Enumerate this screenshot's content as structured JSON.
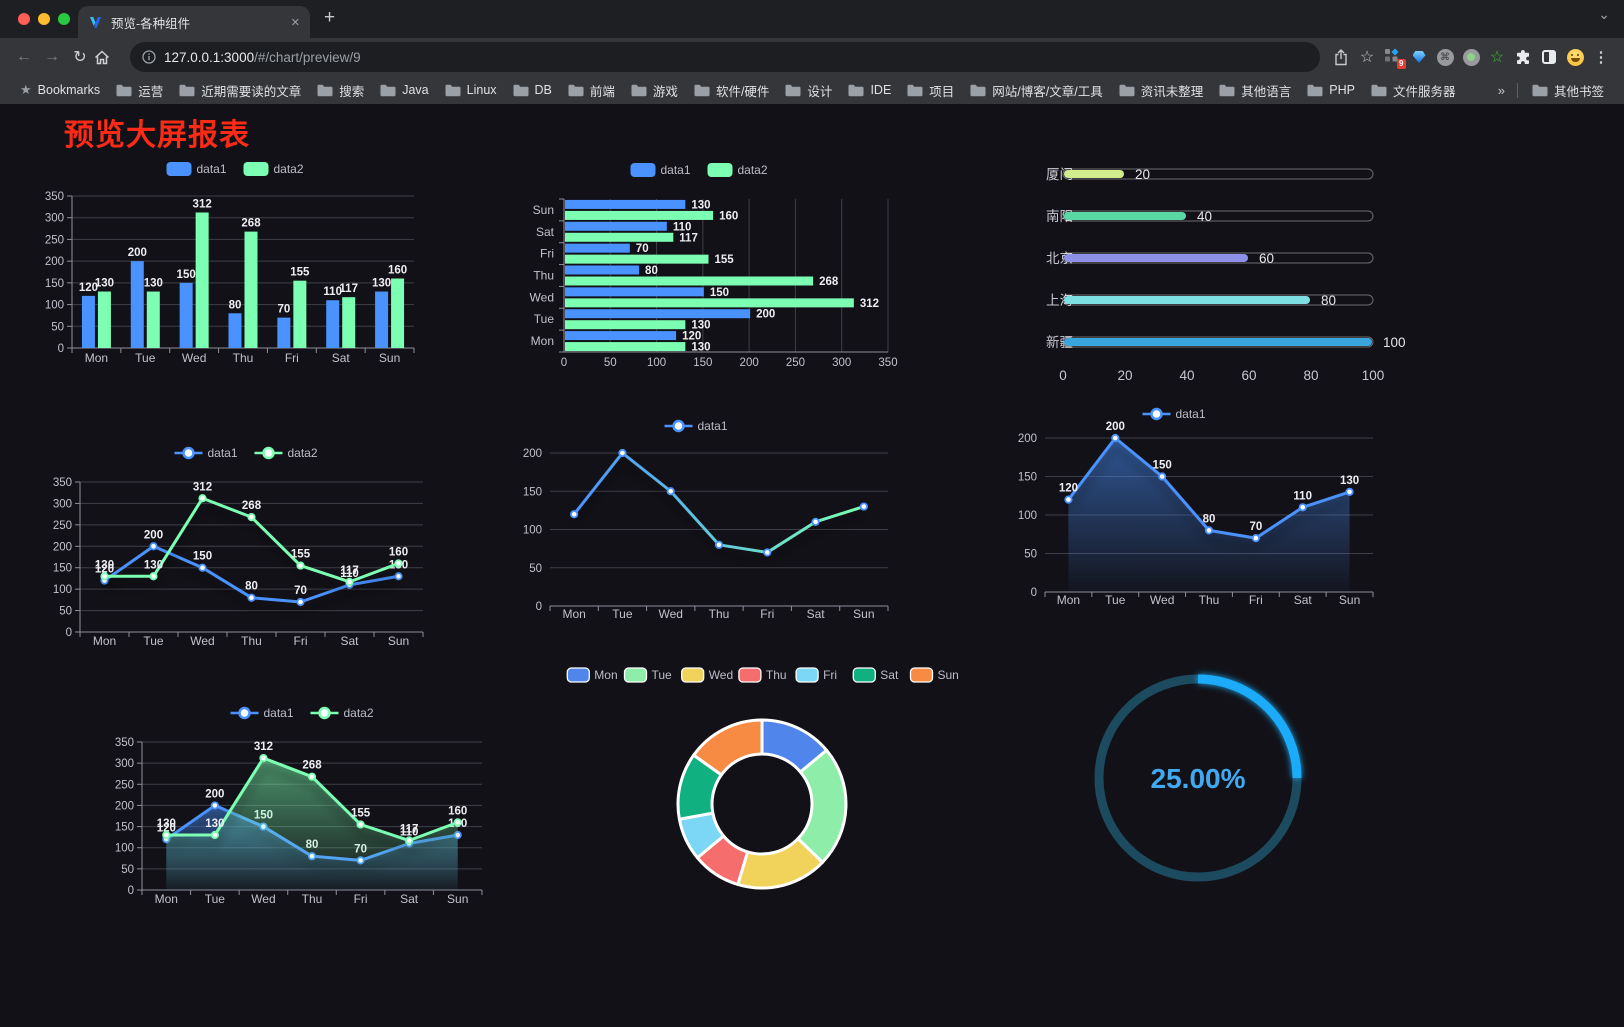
{
  "browser": {
    "tab_title": "预览-各种组件",
    "close_icon": "✕",
    "new_tab_icon": "+",
    "tab_chevron": "⌄",
    "url_host": "127.0.0.1:3000",
    "url_path": "/#/chart/preview/9",
    "icons": {
      "back": "←",
      "forward": "→",
      "reload": "↻",
      "menu": "⋮",
      "star": "☆",
      "green_star": "☆",
      "command": "⌘"
    },
    "extension_badge": "9",
    "bookmarks_bar": {
      "root_label": "Bookmarks",
      "folders": [
        "运营",
        "近期需要读的文章",
        "搜索",
        "Java",
        "Linux",
        "DB",
        "前端",
        "游戏",
        "软件/硬件",
        "设计",
        "IDE",
        "项目",
        "网站/博客/文章/工具",
        "资讯未整理",
        "其他语言",
        "PHP",
        "文件服务器"
      ],
      "overflow_icon": "»",
      "other_label": "其他书签"
    },
    "window_control_colors": [
      "#ff5f57",
      "#febc2e",
      "#28c840"
    ]
  },
  "page": {
    "title": "预览大屏报表",
    "title_color": "#fb2b18",
    "background": "#121117"
  },
  "chart_data": [
    {
      "id": "c1",
      "type": "bar",
      "categories": [
        "Mon",
        "Tue",
        "Wed",
        "Thu",
        "Fri",
        "Sat",
        "Sun"
      ],
      "series": [
        {
          "name": "data1",
          "color": "#4992ff",
          "values": [
            120,
            200,
            150,
            80,
            70,
            110,
            130
          ]
        },
        {
          "name": "data2",
          "color": "#7cffb2",
          "values": [
            130,
            130,
            312,
            268,
            155,
            117,
            160
          ]
        }
      ],
      "ylim": [
        0,
        350
      ],
      "ytick": 50,
      "legend_position": "top",
      "grid": true
    },
    {
      "id": "c2",
      "type": "hbar",
      "categories": [
        "Mon",
        "Tue",
        "Wed",
        "Thu",
        "Fri",
        "Sat",
        "Sun"
      ],
      "series": [
        {
          "name": "data1",
          "color": "#4992ff",
          "values": [
            120,
            200,
            150,
            80,
            70,
            110,
            130
          ]
        },
        {
          "name": "data2",
          "color": "#7cffb2",
          "values": [
            130,
            130,
            312,
            268,
            155,
            117,
            160
          ]
        }
      ],
      "xlim": [
        0,
        350
      ],
      "xtick": 50,
      "legend_position": "top",
      "grid": true
    },
    {
      "id": "c3",
      "type": "progress",
      "max": 100,
      "axis_ticks": [
        0,
        20,
        40,
        60,
        80,
        100
      ],
      "items": [
        {
          "label": "厦门",
          "value": 20,
          "color": "#d2ec8d"
        },
        {
          "label": "南阳",
          "value": 40,
          "color": "#57d8a4"
        },
        {
          "label": "北京",
          "value": 60,
          "color": "#8e90e8"
        },
        {
          "label": "上海",
          "value": 80,
          "color": "#7edfe3"
        },
        {
          "label": "新疆",
          "value": 100,
          "color": "#3aa5dc"
        }
      ]
    },
    {
      "id": "c4",
      "type": "line",
      "show_labels": true,
      "area": false,
      "categories": [
        "Mon",
        "Tue",
        "Wed",
        "Thu",
        "Fri",
        "Sat",
        "Sun"
      ],
      "series": [
        {
          "name": "data1",
          "color": "#4992ff",
          "values": [
            120,
            200,
            150,
            80,
            70,
            110,
            130
          ]
        },
        {
          "name": "data2",
          "color": "#7cffb2",
          "values": [
            130,
            130,
            312,
            268,
            155,
            117,
            160
          ]
        }
      ],
      "ylim": [
        0,
        350
      ],
      "ytick": 50,
      "legend_position": "top",
      "grid": true
    },
    {
      "id": "c5",
      "type": "line",
      "show_labels": false,
      "area": false,
      "categories": [
        "Mon",
        "Tue",
        "Wed",
        "Thu",
        "Fri",
        "Sat",
        "Sun"
      ],
      "series": [
        {
          "name": "data1",
          "color": "#4992ff",
          "gradient": [
            "#4992ff",
            "#7cffb2"
          ],
          "values": [
            120,
            200,
            150,
            80,
            70,
            110,
            130
          ]
        }
      ],
      "ylim": [
        0,
        200
      ],
      "ytick": 50,
      "legend_position": "top",
      "grid": true
    },
    {
      "id": "c6",
      "type": "line",
      "show_labels": true,
      "area": true,
      "categories": [
        "Mon",
        "Tue",
        "Wed",
        "Thu",
        "Fri",
        "Sat",
        "Sun"
      ],
      "series": [
        {
          "name": "data1",
          "color": "#4992ff",
          "values": [
            120,
            200,
            150,
            80,
            70,
            110,
            130
          ]
        }
      ],
      "ylim": [
        0,
        200
      ],
      "ytick": 50,
      "legend_position": "top",
      "grid": true
    },
    {
      "id": "c7",
      "type": "line",
      "show_labels": true,
      "area": true,
      "categories": [
        "Mon",
        "Tue",
        "Wed",
        "Thu",
        "Fri",
        "Sat",
        "Sun"
      ],
      "series": [
        {
          "name": "data1",
          "color": "#4992ff",
          "values": [
            120,
            200,
            150,
            80,
            70,
            110,
            130
          ]
        },
        {
          "name": "data2",
          "color": "#7cffb2",
          "values": [
            130,
            130,
            312,
            268,
            155,
            117,
            160
          ]
        }
      ],
      "ylim": [
        0,
        350
      ],
      "ytick": 50,
      "legend_position": "top",
      "grid": true
    },
    {
      "id": "c8",
      "type": "pie",
      "donut": true,
      "legend_position": "top",
      "items": [
        {
          "label": "Mon",
          "value": 120,
          "color": "#5086ec"
        },
        {
          "label": "Tue",
          "value": 200,
          "color": "#8fedaa"
        },
        {
          "label": "Wed",
          "value": 150,
          "color": "#f1d25a"
        },
        {
          "label": "Thu",
          "value": 80,
          "color": "#f56d6d"
        },
        {
          "label": "Fri",
          "value": 70,
          "color": "#7cd6f5"
        },
        {
          "label": "Sat",
          "value": 110,
          "color": "#10b080"
        },
        {
          "label": "Sun",
          "value": 130,
          "color": "#f78b43"
        }
      ]
    },
    {
      "id": "c9",
      "type": "gauge",
      "value": 25,
      "max": 100,
      "label": "25.00%",
      "color": "#1aabf8",
      "track_color": "#1c4a5f",
      "text_color": "#41a9f0"
    }
  ]
}
